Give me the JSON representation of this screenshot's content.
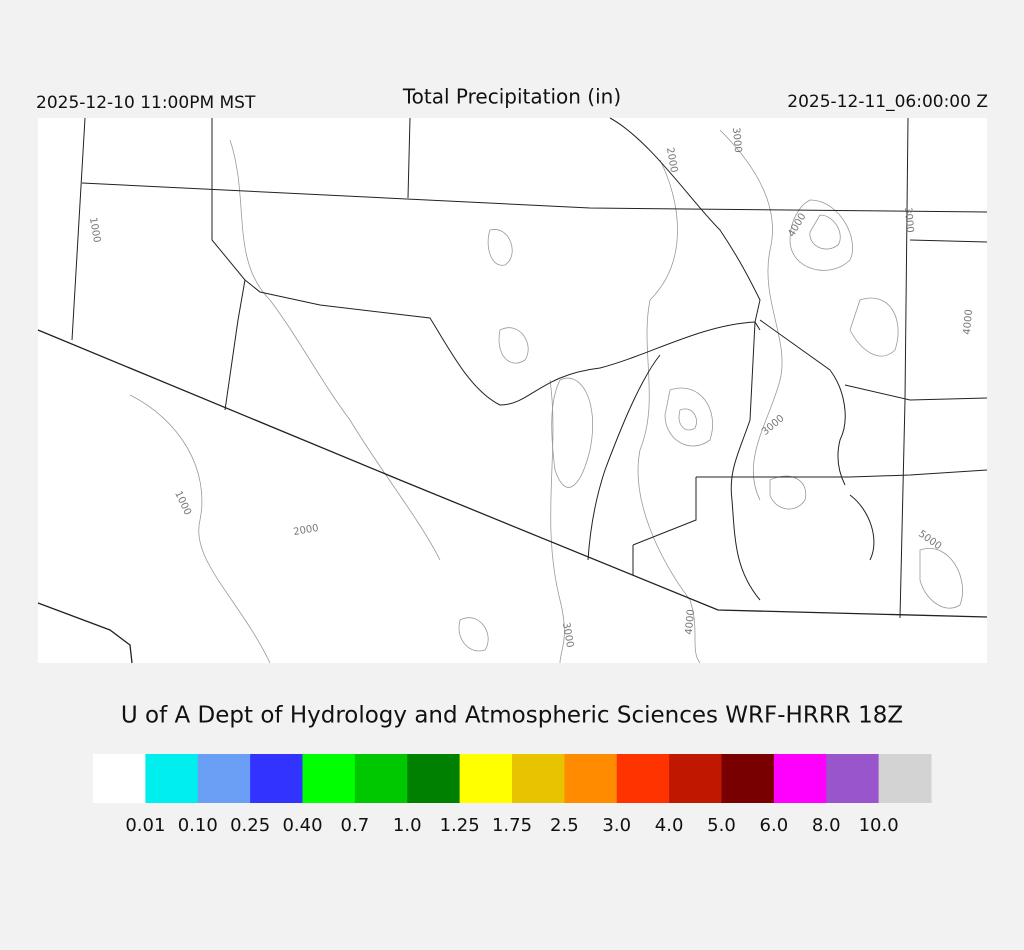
{
  "header": {
    "left": "2025-12-10 11:00PM MST",
    "title": "Total Precipitation (in)",
    "right": "2025-12-11_06:00:00 Z"
  },
  "map": {
    "contour_labels": [
      "1000",
      "2000",
      "3000",
      "4000",
      "3000",
      "4000",
      "3000",
      "1000",
      "2000",
      "5000",
      "3000",
      "4000"
    ]
  },
  "footer": {
    "title": "U of A Dept of Hydrology and Atmospheric Sciences WRF-HRRR 18Z"
  },
  "colorbar": {
    "colors": [
      "#ffffff",
      "#00eeee",
      "#6a9ff5",
      "#3333ff",
      "#00ff00",
      "#00c800",
      "#008000",
      "#ffff00",
      "#e8c400",
      "#ff8c00",
      "#ff3300",
      "#c01800",
      "#780000",
      "#ff00ff",
      "#9955cc",
      "#d3d3d3"
    ],
    "labels": [
      "0.01",
      "0.10",
      "0.25",
      "0.40",
      "0.7",
      "1.0",
      "1.25",
      "1.75",
      "2.5",
      "3.0",
      "4.0",
      "5.0",
      "6.0",
      "8.0",
      "10.0"
    ]
  }
}
